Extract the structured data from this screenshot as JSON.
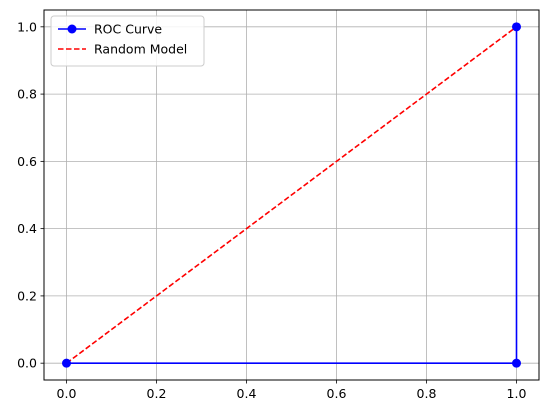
{
  "chart_data": {
    "type": "line",
    "title": "",
    "xlabel": "",
    "ylabel": "",
    "xlim": [
      -0.05,
      1.05
    ],
    "ylim": [
      -0.05,
      1.05
    ],
    "xticks": [
      0.0,
      0.2,
      0.4,
      0.6,
      0.8,
      1.0
    ],
    "yticks": [
      0.0,
      0.2,
      0.4,
      0.6,
      0.8,
      1.0
    ],
    "xtick_labels": [
      "0.0",
      "0.2",
      "0.4",
      "0.6",
      "0.8",
      "1.0"
    ],
    "ytick_labels": [
      "0.0",
      "0.2",
      "0.4",
      "0.6",
      "0.8",
      "1.0"
    ],
    "grid": true,
    "legend_position": "upper-left",
    "series": [
      {
        "name": "ROC Curve",
        "x": [
          0.0,
          1.0,
          1.0
        ],
        "y": [
          0.0,
          0.0,
          1.0
        ],
        "color": "#0000ff",
        "style": "solid",
        "marker": "circle"
      },
      {
        "name": "Random Model",
        "x": [
          0.0,
          1.0
        ],
        "y": [
          0.0,
          1.0
        ],
        "color": "#ff0000",
        "style": "dashed",
        "marker": "none"
      }
    ]
  }
}
